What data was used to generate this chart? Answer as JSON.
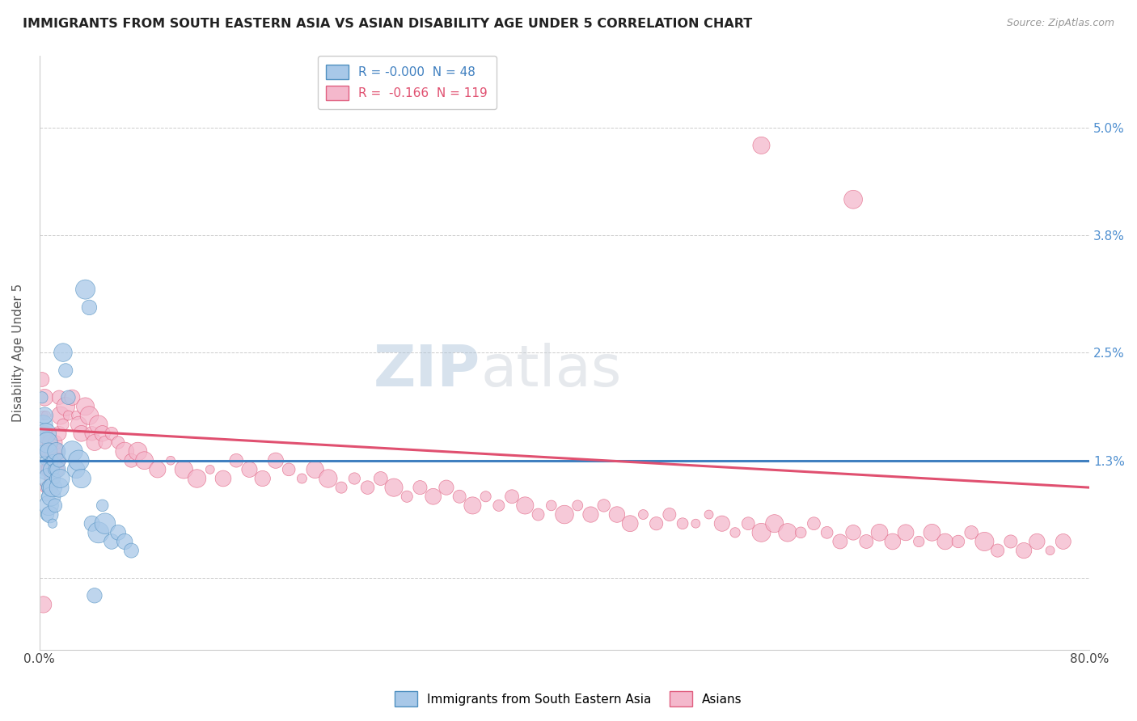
{
  "title": "IMMIGRANTS FROM SOUTH EASTERN ASIA VS ASIAN DISABILITY AGE UNDER 5 CORRELATION CHART",
  "source_text": "Source: ZipAtlas.com",
  "ylabel": "Disability Age Under 5",
  "xlim": [
    0.0,
    0.8
  ],
  "ylim": [
    -0.008,
    0.058
  ],
  "ytick_positions": [
    0.0,
    0.013,
    0.025,
    0.038,
    0.05
  ],
  "ytick_labels": [
    "",
    "1.3%",
    "2.5%",
    "3.8%",
    "5.0%"
  ],
  "xtick_positions": [
    0.0,
    0.1,
    0.2,
    0.3,
    0.4,
    0.5,
    0.6,
    0.7,
    0.8
  ],
  "xtick_labels": [
    "0.0%",
    "",
    "",
    "",
    "",
    "",
    "",
    "",
    "80.0%"
  ],
  "legend_r_blue": "-0.000",
  "legend_n_blue": "48",
  "legend_r_pink": "-0.166",
  "legend_n_pink": "119",
  "blue_fill": "#a8c8e8",
  "pink_fill": "#f4b8cc",
  "blue_edge": "#5090c0",
  "pink_edge": "#e06080",
  "blue_line": "#4080c0",
  "pink_line": "#e05070",
  "watermark_color": "#d0dde8",
  "title_color": "#222222",
  "right_tick_color": "#5090d0",
  "blue_scatter": [
    [
      0.002,
      0.02
    ],
    [
      0.003,
      0.017
    ],
    [
      0.003,
      0.014
    ],
    [
      0.004,
      0.018
    ],
    [
      0.004,
      0.013
    ],
    [
      0.005,
      0.016
    ],
    [
      0.005,
      0.012
    ],
    [
      0.005,
      0.009
    ],
    [
      0.006,
      0.015
    ],
    [
      0.006,
      0.01
    ],
    [
      0.006,
      0.007
    ],
    [
      0.007,
      0.014
    ],
    [
      0.007,
      0.011
    ],
    [
      0.007,
      0.008
    ],
    [
      0.008,
      0.013
    ],
    [
      0.008,
      0.01
    ],
    [
      0.008,
      0.007
    ],
    [
      0.009,
      0.012
    ],
    [
      0.009,
      0.009
    ],
    [
      0.01,
      0.013
    ],
    [
      0.01,
      0.01
    ],
    [
      0.01,
      0.006
    ],
    [
      0.011,
      0.012
    ],
    [
      0.012,
      0.011
    ],
    [
      0.012,
      0.008
    ],
    [
      0.013,
      0.014
    ],
    [
      0.014,
      0.012
    ],
    [
      0.015,
      0.01
    ],
    [
      0.015,
      0.013
    ],
    [
      0.016,
      0.011
    ],
    [
      0.018,
      0.025
    ],
    [
      0.02,
      0.023
    ],
    [
      0.022,
      0.02
    ],
    [
      0.025,
      0.014
    ],
    [
      0.028,
      0.012
    ],
    [
      0.03,
      0.013
    ],
    [
      0.032,
      0.011
    ],
    [
      0.035,
      0.032
    ],
    [
      0.038,
      0.03
    ],
    [
      0.04,
      0.006
    ],
    [
      0.042,
      -0.002
    ],
    [
      0.045,
      0.005
    ],
    [
      0.048,
      0.008
    ],
    [
      0.05,
      0.006
    ],
    [
      0.055,
      0.004
    ],
    [
      0.06,
      0.005
    ],
    [
      0.065,
      0.004
    ],
    [
      0.07,
      0.003
    ]
  ],
  "pink_scatter": [
    [
      0.002,
      0.022
    ],
    [
      0.003,
      0.018
    ],
    [
      0.003,
      0.015
    ],
    [
      0.004,
      0.02
    ],
    [
      0.004,
      0.016
    ],
    [
      0.005,
      0.018
    ],
    [
      0.005,
      0.014
    ],
    [
      0.005,
      0.01
    ],
    [
      0.006,
      0.016
    ],
    [
      0.006,
      0.012
    ],
    [
      0.007,
      0.014
    ],
    [
      0.007,
      0.011
    ],
    [
      0.008,
      0.015
    ],
    [
      0.008,
      0.012
    ],
    [
      0.009,
      0.013
    ],
    [
      0.009,
      0.01
    ],
    [
      0.01,
      0.014
    ],
    [
      0.01,
      0.011
    ],
    [
      0.011,
      0.013
    ],
    [
      0.012,
      0.015
    ],
    [
      0.012,
      0.012
    ],
    [
      0.013,
      0.014
    ],
    [
      0.014,
      0.013
    ],
    [
      0.015,
      0.02
    ],
    [
      0.015,
      0.016
    ],
    [
      0.016,
      0.018
    ],
    [
      0.018,
      0.017
    ],
    [
      0.02,
      0.019
    ],
    [
      0.022,
      0.018
    ],
    [
      0.025,
      0.02
    ],
    [
      0.028,
      0.018
    ],
    [
      0.03,
      0.017
    ],
    [
      0.032,
      0.016
    ],
    [
      0.035,
      0.019
    ],
    [
      0.038,
      0.018
    ],
    [
      0.04,
      0.016
    ],
    [
      0.042,
      0.015
    ],
    [
      0.045,
      0.017
    ],
    [
      0.048,
      0.016
    ],
    [
      0.05,
      0.015
    ],
    [
      0.055,
      0.016
    ],
    [
      0.06,
      0.015
    ],
    [
      0.065,
      0.014
    ],
    [
      0.07,
      0.013
    ],
    [
      0.075,
      0.014
    ],
    [
      0.08,
      0.013
    ],
    [
      0.09,
      0.012
    ],
    [
      0.1,
      0.013
    ],
    [
      0.11,
      0.012
    ],
    [
      0.12,
      0.011
    ],
    [
      0.13,
      0.012
    ],
    [
      0.14,
      0.011
    ],
    [
      0.15,
      0.013
    ],
    [
      0.16,
      0.012
    ],
    [
      0.17,
      0.011
    ],
    [
      0.18,
      0.013
    ],
    [
      0.19,
      0.012
    ],
    [
      0.2,
      0.011
    ],
    [
      0.21,
      0.012
    ],
    [
      0.22,
      0.011
    ],
    [
      0.23,
      0.01
    ],
    [
      0.24,
      0.011
    ],
    [
      0.25,
      0.01
    ],
    [
      0.26,
      0.011
    ],
    [
      0.27,
      0.01
    ],
    [
      0.28,
      0.009
    ],
    [
      0.29,
      0.01
    ],
    [
      0.3,
      0.009
    ],
    [
      0.31,
      0.01
    ],
    [
      0.32,
      0.009
    ],
    [
      0.33,
      0.008
    ],
    [
      0.34,
      0.009
    ],
    [
      0.35,
      0.008
    ],
    [
      0.36,
      0.009
    ],
    [
      0.37,
      0.008
    ],
    [
      0.38,
      0.007
    ],
    [
      0.39,
      0.008
    ],
    [
      0.4,
      0.007
    ],
    [
      0.41,
      0.008
    ],
    [
      0.42,
      0.007
    ],
    [
      0.43,
      0.008
    ],
    [
      0.44,
      0.007
    ],
    [
      0.45,
      0.006
    ],
    [
      0.46,
      0.007
    ],
    [
      0.47,
      0.006
    ],
    [
      0.48,
      0.007
    ],
    [
      0.49,
      0.006
    ],
    [
      0.5,
      0.006
    ],
    [
      0.51,
      0.007
    ],
    [
      0.52,
      0.006
    ],
    [
      0.53,
      0.005
    ],
    [
      0.54,
      0.006
    ],
    [
      0.55,
      0.005
    ],
    [
      0.56,
      0.006
    ],
    [
      0.57,
      0.005
    ],
    [
      0.58,
      0.005
    ],
    [
      0.59,
      0.006
    ],
    [
      0.6,
      0.005
    ],
    [
      0.61,
      0.004
    ],
    [
      0.62,
      0.005
    ],
    [
      0.63,
      0.004
    ],
    [
      0.64,
      0.005
    ],
    [
      0.65,
      0.004
    ],
    [
      0.66,
      0.005
    ],
    [
      0.67,
      0.004
    ],
    [
      0.68,
      0.005
    ],
    [
      0.69,
      0.004
    ],
    [
      0.7,
      0.004
    ],
    [
      0.71,
      0.005
    ],
    [
      0.72,
      0.004
    ],
    [
      0.73,
      0.003
    ],
    [
      0.74,
      0.004
    ],
    [
      0.75,
      0.003
    ],
    [
      0.76,
      0.004
    ],
    [
      0.77,
      0.003
    ],
    [
      0.78,
      0.004
    ],
    [
      0.55,
      0.048
    ],
    [
      0.62,
      0.042
    ],
    [
      0.003,
      -0.003
    ]
  ]
}
